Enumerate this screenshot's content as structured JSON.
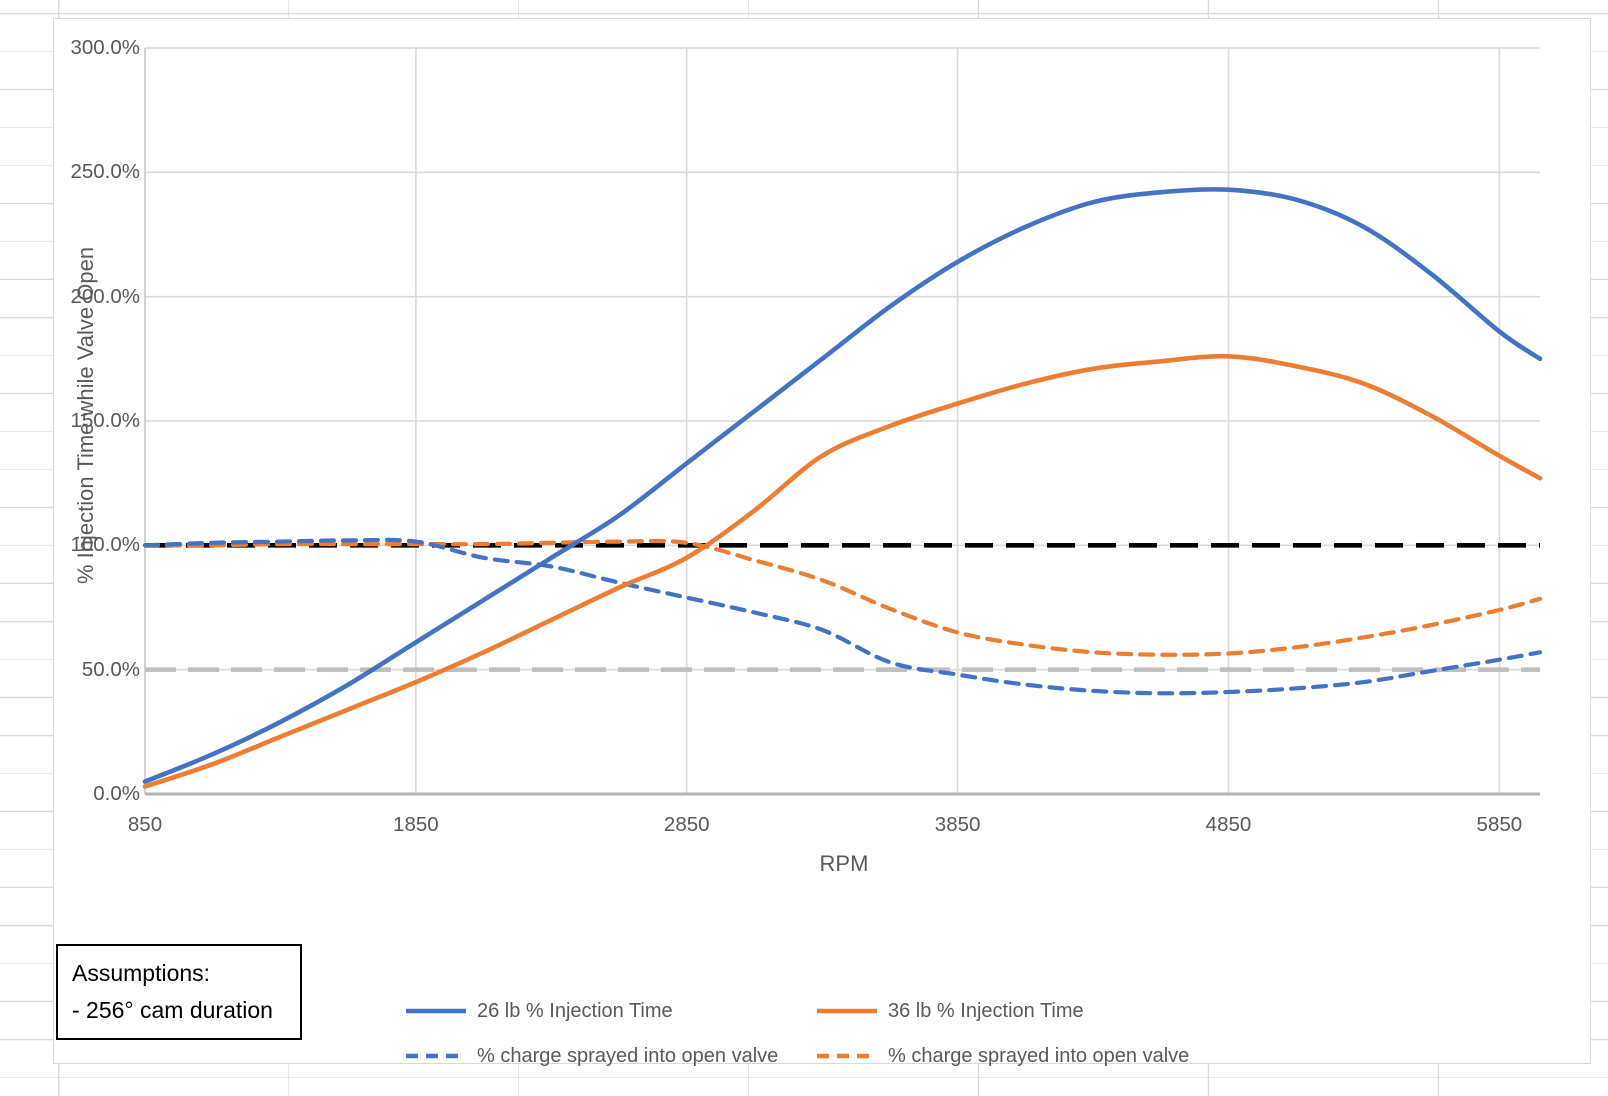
{
  "chart_data": {
    "type": "line",
    "title": "",
    "xlabel": "RPM",
    "ylabel": "% Injection Time while Valve Open",
    "xlim": [
      850,
      6000
    ],
    "ylim_pct": [
      0,
      300
    ],
    "grid": true,
    "legend_position": "bottom",
    "x_tick_labels": [
      "850",
      "1850",
      "2850",
      "3850",
      "4850",
      "5850"
    ],
    "x_tick_values": [
      850,
      1850,
      2850,
      3850,
      4850,
      5850
    ],
    "y_tick_labels": [
      "300.0%",
      "250.0%",
      "200.0%",
      "150.0%",
      "100.0%",
      "50.0%",
      "0.0%"
    ],
    "y_tick_values_pct": [
      300,
      250,
      200,
      150,
      100,
      50,
      0
    ],
    "x_rpm": [
      850,
      1100,
      1350,
      1600,
      1850,
      2100,
      2350,
      2600,
      2850,
      3100,
      3350,
      3600,
      3850,
      4100,
      4350,
      4600,
      4850,
      5100,
      5350,
      5600,
      5850,
      6000
    ],
    "series": [
      {
        "name": "26 lb % Injection Time",
        "color": "#4472C4",
        "style": "solid",
        "values_pct": [
          5,
          16,
          29,
          44,
          61,
          78,
          95,
          112,
          133,
          154,
          175,
          196,
          214,
          228,
          238,
          242,
          243,
          239,
          228,
          209,
          186,
          175
        ]
      },
      {
        "name": "36 lb % Injection Time",
        "color": "#ED7D31",
        "style": "solid",
        "values_pct": [
          3,
          12,
          23,
          34,
          45,
          57,
          70,
          83,
          95,
          114,
          136,
          148,
          157,
          165,
          171,
          174,
          176,
          172,
          165,
          152,
          136,
          127
        ]
      },
      {
        "name": "% charge sprayed into open valve",
        "color": "#4472C4",
        "style": "dashed",
        "values_pct": [
          100,
          101,
          101.5,
          102,
          101.5,
          95,
          91.5,
          85,
          79,
          73,
          66,
          53,
          48,
          44,
          41.5,
          40.5,
          41,
          42.5,
          45,
          49.5,
          54,
          57
        ]
      },
      {
        "name": "% charge sprayed into open valve",
        "color": "#ED7D31",
        "style": "dashed",
        "values_pct": [
          100,
          100,
          100.5,
          100.5,
          100.5,
          100.5,
          101,
          101.5,
          101,
          94,
          86,
          74.5,
          65,
          60,
          57,
          56,
          56.5,
          59,
          63,
          68,
          74,
          78.5
        ]
      }
    ],
    "reference_lines": [
      {
        "value_pct": 100,
        "color": "#000000",
        "style": "long-dash"
      },
      {
        "value_pct": 50,
        "color": "#BFBFBF",
        "style": "long-dash"
      }
    ]
  },
  "annotation_box": {
    "line1": "Assumptions:",
    "line2": "- 256° cam duration"
  },
  "colors": {
    "blue": "#4472C4",
    "orange": "#ED7D31",
    "gridline": "#D9D9D9",
    "axis_line": "#BFBFBF",
    "tick_text": "#595959"
  }
}
